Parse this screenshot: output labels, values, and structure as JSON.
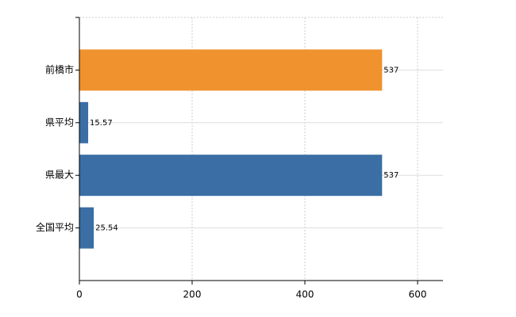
{
  "chart_data": {
    "type": "hbar",
    "categories": [
      "前橋市",
      "県平均",
      "県最大",
      "全国平均"
    ],
    "values": [
      537,
      15.57,
      537,
      25.54
    ],
    "colors": [
      "#f0922e",
      "#3a6ea5",
      "#3a6ea5",
      "#3a6ea5"
    ],
    "xlim": [
      0,
      645
    ],
    "xticks": [
      0,
      200,
      400,
      600
    ],
    "grid": true
  }
}
